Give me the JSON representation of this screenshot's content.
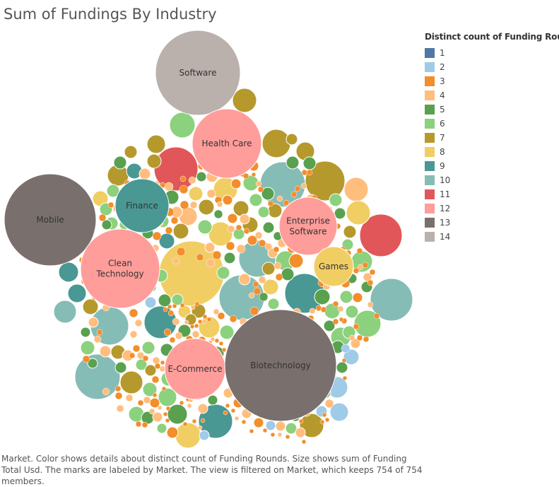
{
  "chart_data": {
    "type": "packed-bubble",
    "title": "Sum of Fundings By Industry",
    "legend": {
      "title": "Distinct count of Funding Rounds",
      "placement": "top-right",
      "items": [
        {
          "label": "1",
          "color": "#4e79a7"
        },
        {
          "label": "2",
          "color": "#a0cbe8"
        },
        {
          "label": "3",
          "color": "#f28e2b"
        },
        {
          "label": "4",
          "color": "#ffbe7d"
        },
        {
          "label": "5",
          "color": "#59a14f"
        },
        {
          "label": "6",
          "color": "#8cd17d"
        },
        {
          "label": "7",
          "color": "#b6992d"
        },
        {
          "label": "8",
          "color": "#f1ce63"
        },
        {
          "label": "9",
          "color": "#499894"
        },
        {
          "label": "10",
          "color": "#86bcb6"
        },
        {
          "label": "11",
          "color": "#e15759"
        },
        {
          "label": "12",
          "color": "#ff9d9a"
        },
        {
          "label": "13",
          "color": "#79706e"
        },
        {
          "label": "14",
          "color": "#bab0ac"
        }
      ]
    },
    "labeled_markets": [
      {
        "market": "Software",
        "rounds": 14
      },
      {
        "market": "Health Care",
        "rounds": 12
      },
      {
        "market": "Mobile",
        "rounds": 13
      },
      {
        "market": "Finance",
        "rounds": 9
      },
      {
        "market": "Enterprise Software",
        "lines": [
          "Enterprise",
          "Software"
        ],
        "rounds": 12
      },
      {
        "market": "Clean Technology",
        "lines": [
          "Clean",
          "Technology"
        ],
        "rounds": 12
      },
      {
        "market": "Games",
        "rounds": 8
      },
      {
        "market": "E-Commerce",
        "rounds": 12
      },
      {
        "market": "Biotechnology",
        "rounds": 13
      }
    ],
    "members_shown": 754,
    "members_total": 754
  },
  "caption": "Market.  Color shows details about distinct count of Funding Rounds.  Size shows sum of Funding Total Usd.  The marks are labeled by Market. The view is filtered on Market, which keeps 754 of 754 members."
}
